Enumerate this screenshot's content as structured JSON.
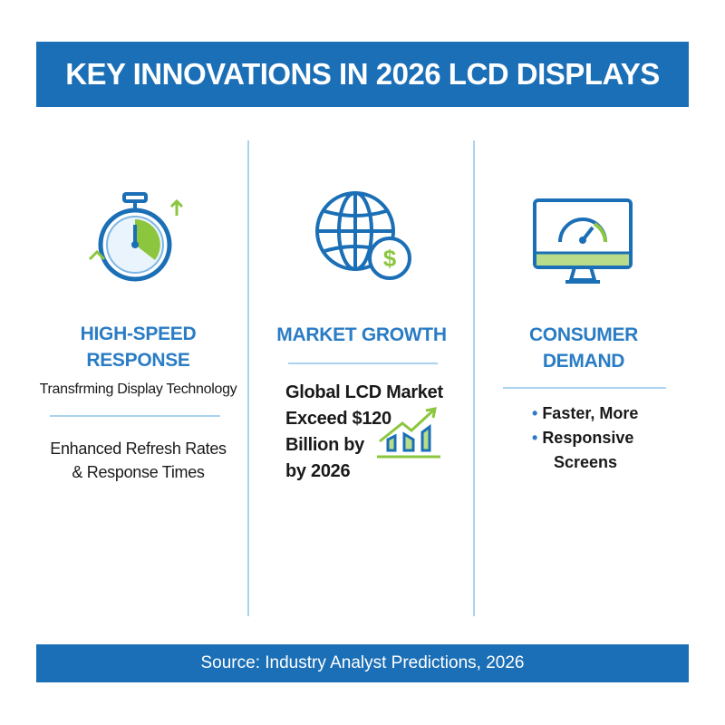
{
  "title": "KEY INNOVATIONS IN 2026 LCD DISPLAYS",
  "columns": [
    {
      "icon": "stopwatch-icon",
      "heading_lines": [
        "HIGH-SPEED",
        "RESPONSE"
      ],
      "subtitle": "Transfrming Display Technology",
      "body_lines": [
        "Enhanced Refresh Rates",
        "& Response Times"
      ]
    },
    {
      "icon": "globe-dollar-icon",
      "heading_lines": [
        "MARKET GROWTH"
      ],
      "body_lines": [
        "Global LCD Market",
        "Exceed $120",
        "Billion by",
        "by 2026"
      ],
      "extra_icon": "growth-chart-icon"
    },
    {
      "icon": "monitor-gauge-icon",
      "heading_lines": [
        "CONSUMER",
        "DEMAND"
      ],
      "bullets": [
        "Faster, More",
        "Responsive"
      ],
      "bullet_continuation": "Screens"
    }
  ],
  "source": "Source: Industry Analyst Predictions, 2026",
  "colors": {
    "primary_blue": "#1b6fb6",
    "accent_green": "#8cc63f",
    "divider": "#a9d2ef"
  }
}
